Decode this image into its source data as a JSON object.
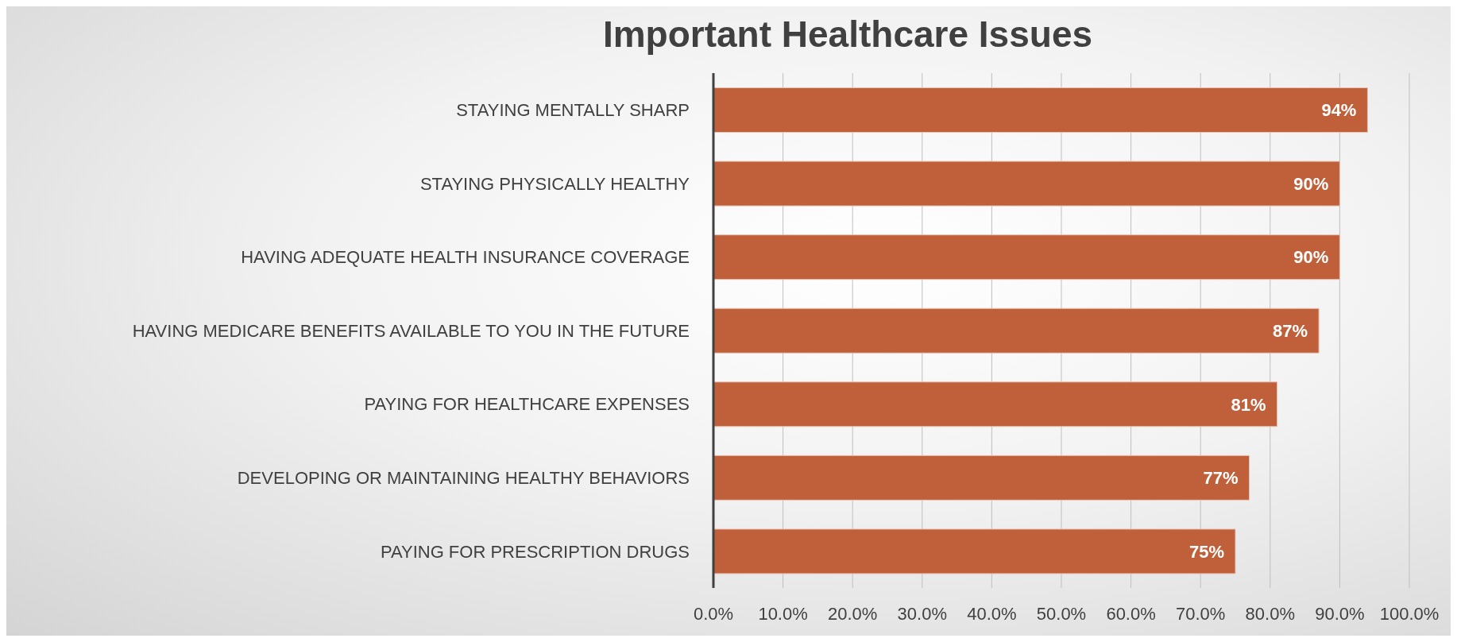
{
  "chart_data": {
    "type": "bar",
    "orientation": "horizontal",
    "title": "Important Healthcare Issues",
    "categories": [
      "STAYING MENTALLY SHARP",
      "STAYING PHYSICALLY HEALTHY",
      "HAVING ADEQUATE HEALTH INSURANCE COVERAGE",
      "HAVING MEDICARE BENEFITS AVAILABLE TO YOU IN THE FUTURE",
      "PAYING FOR HEALTHCARE EXPENSES",
      "DEVELOPING OR MAINTAINING HEALTHY BEHAVIORS",
      "PAYING FOR PRESCRIPTION DRUGS"
    ],
    "values": [
      94,
      90,
      90,
      87,
      81,
      77,
      75
    ],
    "value_labels": [
      "94%",
      "90%",
      "90%",
      "87%",
      "81%",
      "77%",
      "75%"
    ],
    "color": "#c0603a",
    "xlim": [
      0,
      100
    ],
    "xticks": [
      {
        "value": 0,
        "label": "0.0%"
      },
      {
        "value": 10,
        "label": "10.0%"
      },
      {
        "value": 20,
        "label": "20.0%"
      },
      {
        "value": 30,
        "label": "30.0%"
      },
      {
        "value": 40,
        "label": "40.0%"
      },
      {
        "value": 50,
        "label": "50.0%"
      },
      {
        "value": 60,
        "label": "60.0%"
      },
      {
        "value": 70,
        "label": "70.0%"
      },
      {
        "value": 80,
        "label": "80.0%"
      },
      {
        "value": 90,
        "label": "90.0%"
      },
      {
        "value": 100,
        "label": "100.0%"
      }
    ],
    "grid": "x",
    "legend": false
  }
}
